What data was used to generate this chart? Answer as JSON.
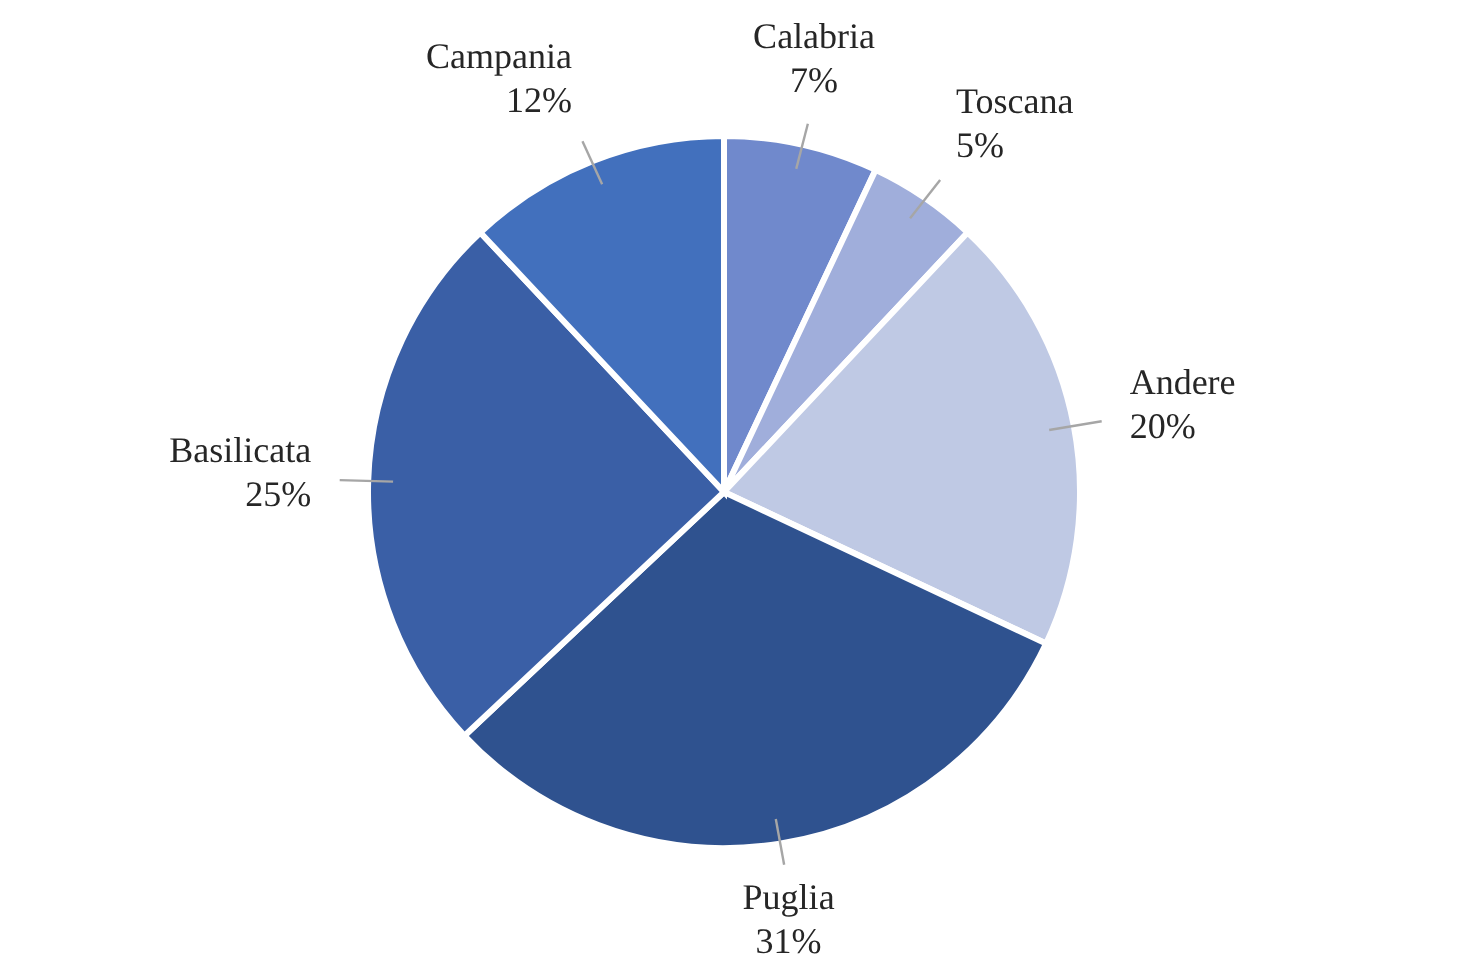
{
  "chart_data": {
    "type": "pie",
    "categories": [
      "Calabria",
      "Toscana",
      "Andere",
      "Puglia",
      "Basilicata",
      "Campania"
    ],
    "values": [
      7,
      5,
      20,
      31,
      25,
      12
    ],
    "value_labels": [
      "7%",
      "5%",
      "20%",
      "31%",
      "25%",
      "12%"
    ],
    "colors": [
      "#7089cc",
      "#a0aedb",
      "#bfc9e4",
      "#2f528f",
      "#3a5fa6",
      "#4270bd"
    ]
  }
}
